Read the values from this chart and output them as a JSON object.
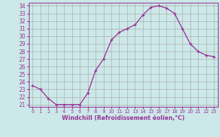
{
  "hours": [
    0,
    1,
    2,
    3,
    4,
    5,
    6,
    7,
    8,
    9,
    10,
    11,
    12,
    13,
    14,
    15,
    16,
    17,
    18,
    19,
    20,
    21,
    22,
    23
  ],
  "values": [
    23.5,
    23.0,
    21.8,
    21.0,
    21.0,
    21.0,
    21.0,
    22.5,
    25.5,
    27.0,
    29.5,
    30.5,
    31.0,
    31.5,
    32.8,
    33.8,
    34.0,
    33.7,
    33.0,
    31.0,
    29.0,
    28.0,
    27.5,
    27.3
  ],
  "line_color": "#993399",
  "marker": "+",
  "bg_color": "#cce8e8",
  "grid_color": "#aaaaaa",
  "xlabel": "Windchill (Refroidissement éolien,°C)",
  "xlabel_color": "#993399",
  "tick_color": "#993399",
  "spine_color": "#993399",
  "ylim_min": 20.7,
  "ylim_max": 34.4,
  "ytick_min": 21,
  "ytick_max": 34,
  "xlim_min": -0.5,
  "xlim_max": 23.5
}
